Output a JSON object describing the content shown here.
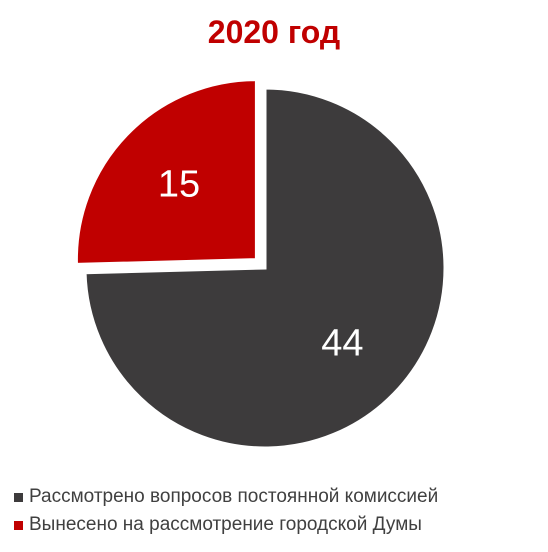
{
  "chart_data": {
    "type": "pie",
    "title": "2020 год",
    "categories": [
      "Рассмотрено вопросов постоянной комиссией",
      "Вынесено на рассмотрение городской Думы"
    ],
    "values": [
      44,
      15
    ],
    "colors": [
      "#3d3b3c",
      "#c00000"
    ],
    "data_labels": [
      "44",
      "15"
    ],
    "exploded_slice": "Вынесено на рассмотрение городской Думы",
    "legend_position": "bottom"
  },
  "colors": {
    "title": "#c00000",
    "label": "#ffffff",
    "legend_text": "#404040"
  }
}
